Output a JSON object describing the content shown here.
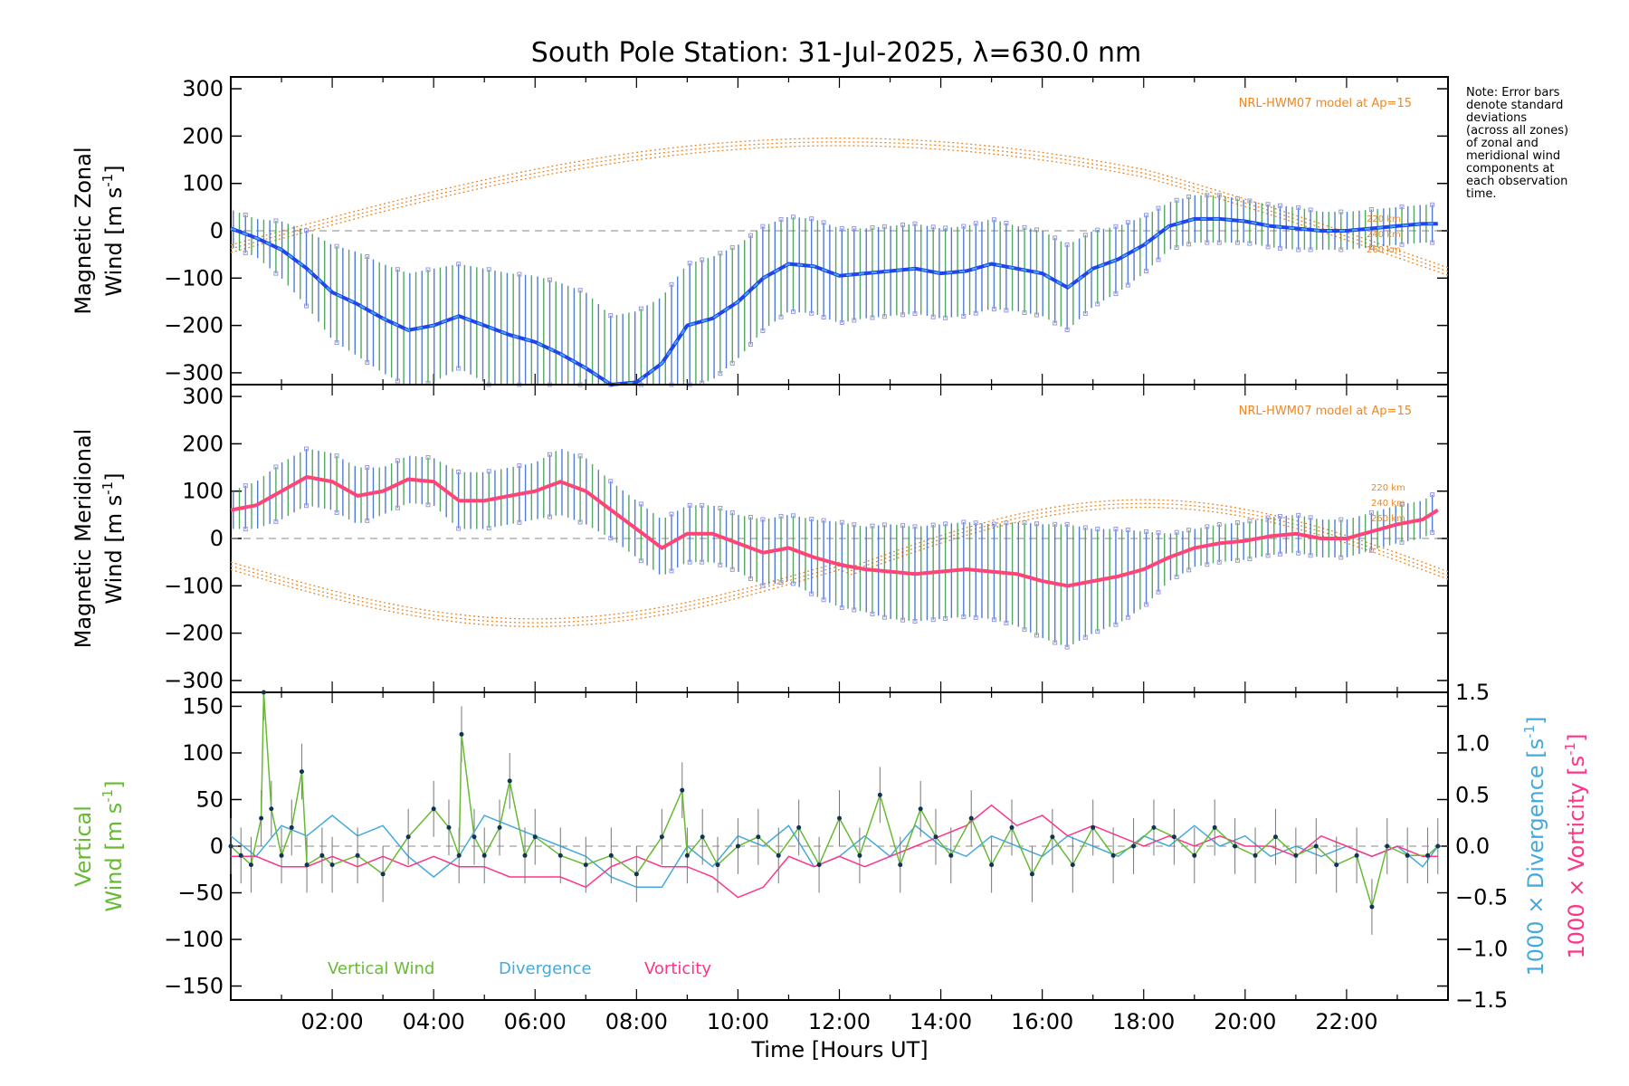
{
  "title": "South Pole Station: 31-Jul-2025, λ=630.0 nm",
  "note_lines": [
    "Note: Error bars",
    "denote standard",
    "deviations",
    "(across all zones)",
    "of zonal and",
    "meridional wind",
    "components at",
    "each observation",
    "time."
  ],
  "colors": {
    "zonal": "#2244ee",
    "zonal_alt": "#44aaee",
    "meridional": "#ff4477",
    "vertical": "#66bb33",
    "divergence": "#44aadd",
    "vorticity": "#ff3388",
    "model": "#ee8822",
    "errorbar_a": "#339944",
    "errorbar_b": "#3366cc",
    "scatter": "#9999dd"
  },
  "chart_data": [
    {
      "type": "line",
      "name": "zonal",
      "ylabel_lines": [
        "Magnetic Zonal",
        "Wind [m s",
        "-1",
        "]"
      ],
      "ylim": [
        -325,
        325
      ],
      "yticks": [
        -300,
        -200,
        -100,
        0,
        100,
        200,
        300
      ],
      "ytick_labels": [
        "−300",
        "−200",
        "−100",
        "0",
        "100",
        "200",
        "300"
      ],
      "xlim": [
        0,
        24
      ],
      "model_label": "NRL-HWM07 model at Ap=15",
      "model_levels": [
        "220 km",
        "240 km",
        "260 km"
      ],
      "series": [
        {
          "name": "Magnetic Zonal Wind",
          "x": [
            0.0,
            0.5,
            1.0,
            1.5,
            2.0,
            2.5,
            3.0,
            3.5,
            4.0,
            4.5,
            5.0,
            5.5,
            6.0,
            6.5,
            7.0,
            7.5,
            8.0,
            8.5,
            9.0,
            9.5,
            10.0,
            10.5,
            11.0,
            11.5,
            12.0,
            12.5,
            13.0,
            13.5,
            14.0,
            14.5,
            15.0,
            15.5,
            16.0,
            16.5,
            17.0,
            17.5,
            18.0,
            18.5,
            19.0,
            19.5,
            20.0,
            20.5,
            21.0,
            21.5,
            22.0,
            22.5,
            23.0,
            23.5,
            23.8
          ],
          "y": [
            5,
            -15,
            -40,
            -80,
            -130,
            -155,
            -185,
            -210,
            -200,
            -180,
            -200,
            -220,
            -235,
            -260,
            -290,
            -340,
            -320,
            -280,
            -200,
            -185,
            -150,
            -100,
            -70,
            -75,
            -95,
            -90,
            -85,
            -80,
            -90,
            -85,
            -70,
            -80,
            -90,
            -120,
            -80,
            -60,
            -30,
            10,
            25,
            25,
            20,
            10,
            5,
            0,
            0,
            5,
            10,
            15,
            15
          ],
          "err": [
            40,
            40,
            60,
            80,
            100,
            110,
            115,
            120,
            120,
            110,
            120,
            130,
            140,
            150,
            160,
            160,
            150,
            140,
            130,
            130,
            120,
            110,
            100,
            100,
            100,
            95,
            95,
            95,
            95,
            95,
            95,
            90,
            90,
            90,
            80,
            70,
            60,
            50,
            50,
            50,
            45,
            45,
            45,
            40,
            40,
            40,
            40,
            40,
            40
          ]
        }
      ]
    },
    {
      "type": "line",
      "name": "meridional",
      "ylabel_lines": [
        "Magnetic Meridional",
        "Wind [m s",
        "-1",
        "]"
      ],
      "ylim": [
        -325,
        325
      ],
      "yticks": [
        -300,
        -200,
        -100,
        0,
        100,
        200,
        300
      ],
      "ytick_labels": [
        "−300",
        "−200",
        "−100",
        "0",
        "100",
        "200",
        "300"
      ],
      "xlim": [
        0,
        24
      ],
      "model_label": "NRL-HWM07 model at Ap=15",
      "model_levels": [
        "220 km",
        "240 km",
        "260 km"
      ],
      "series": [
        {
          "name": "Magnetic Meridional Wind",
          "x": [
            0.0,
            0.5,
            1.0,
            1.5,
            2.0,
            2.5,
            3.0,
            3.5,
            4.0,
            4.5,
            5.0,
            5.5,
            6.0,
            6.5,
            7.0,
            7.5,
            8.0,
            8.5,
            9.0,
            9.5,
            10.0,
            10.5,
            11.0,
            11.5,
            12.0,
            12.5,
            13.0,
            13.5,
            14.0,
            14.5,
            15.0,
            15.5,
            16.0,
            16.5,
            17.0,
            17.5,
            18.0,
            18.5,
            19.0,
            19.5,
            20.0,
            20.5,
            21.0,
            21.5,
            22.0,
            22.5,
            23.0,
            23.5,
            23.8
          ],
          "y": [
            60,
            70,
            100,
            130,
            120,
            90,
            100,
            125,
            120,
            80,
            80,
            90,
            100,
            120,
            100,
            60,
            20,
            -20,
            10,
            10,
            -10,
            -30,
            -20,
            -40,
            -55,
            -65,
            -70,
            -75,
            -70,
            -65,
            -70,
            -75,
            -90,
            -100,
            -90,
            -80,
            -65,
            -40,
            -20,
            -10,
            -5,
            5,
            10,
            0,
            0,
            15,
            30,
            40,
            60
          ],
          "err": [
            40,
            50,
            60,
            60,
            60,
            60,
            50,
            50,
            50,
            60,
            60,
            60,
            60,
            70,
            70,
            60,
            60,
            60,
            60,
            60,
            60,
            70,
            70,
            80,
            90,
            90,
            100,
            100,
            100,
            100,
            100,
            110,
            120,
            130,
            110,
            100,
            80,
            50,
            40,
            40,
            40,
            40,
            40,
            40,
            40,
            40,
            40,
            40,
            40
          ]
        }
      ]
    },
    {
      "type": "line",
      "name": "vertical",
      "ylabel_left_lines": [
        "Vertical",
        "Wind [m s",
        "-1",
        "]"
      ],
      "ylabel_right_div": [
        "1000 × Divergence [s",
        "-1",
        "]"
      ],
      "ylabel_right_vor": [
        "1000 × Vorticity [s",
        "-1",
        "]"
      ],
      "ylim": [
        -165,
        165
      ],
      "yticks": [
        -150,
        -100,
        -50,
        0,
        50,
        100,
        150
      ],
      "ytick_labels": [
        "−150",
        "−100",
        "−50",
        "0",
        "50",
        "100",
        "150"
      ],
      "y2lim": [
        -1.5,
        1.5
      ],
      "y2ticks": [
        -1.5,
        -1.0,
        -0.5,
        0.0,
        0.5,
        1.0,
        1.5
      ],
      "y2tick_labels": [
        "−1.5",
        "−1.0",
        "−0.5",
        "0.0",
        "0.5",
        "1.0",
        "1.5"
      ],
      "xlim": [
        0,
        24
      ],
      "xticks": [
        2,
        4,
        6,
        8,
        10,
        12,
        14,
        16,
        18,
        20,
        22
      ],
      "xtick_labels": [
        "02:00",
        "04:00",
        "06:00",
        "08:00",
        "10:00",
        "12:00",
        "14:00",
        "16:00",
        "18:00",
        "20:00",
        "22:00"
      ],
      "xlabel": "Time [Hours UT]",
      "legend": [
        "Vertical Wind",
        "Divergence",
        "Vorticity"
      ],
      "series": [
        {
          "name": "Vertical Wind",
          "x": [
            0.0,
            0.2,
            0.4,
            0.6,
            0.65,
            0.8,
            1.0,
            1.2,
            1.4,
            1.5,
            1.8,
            2.0,
            2.5,
            3.0,
            3.5,
            4.0,
            4.3,
            4.5,
            4.55,
            4.8,
            5.0,
            5.3,
            5.5,
            5.8,
            6.0,
            6.5,
            7.0,
            7.5,
            8.0,
            8.5,
            8.9,
            9.0,
            9.3,
            9.6,
            10.0,
            10.4,
            10.8,
            11.2,
            11.6,
            12.0,
            12.4,
            12.8,
            13.2,
            13.6,
            13.9,
            14.2,
            14.6,
            15.0,
            15.4,
            15.8,
            16.2,
            16.6,
            17.0,
            17.4,
            17.8,
            18.2,
            18.6,
            19.0,
            19.4,
            19.8,
            20.2,
            20.6,
            21.0,
            21.4,
            21.8,
            22.2,
            22.5,
            22.8,
            23.2,
            23.6,
            23.8
          ],
          "y": [
            0,
            -10,
            -20,
            30,
            165,
            40,
            -10,
            20,
            80,
            -20,
            -10,
            -20,
            -10,
            -30,
            10,
            40,
            20,
            -10,
            120,
            10,
            -10,
            20,
            70,
            -10,
            10,
            -10,
            -20,
            -10,
            -30,
            10,
            60,
            -10,
            10,
            -20,
            0,
            10,
            -10,
            20,
            -20,
            30,
            -10,
            55,
            -20,
            40,
            10,
            -10,
            30,
            -20,
            20,
            -30,
            10,
            -20,
            20,
            -10,
            0,
            20,
            10,
            -10,
            20,
            0,
            -10,
            10,
            -10,
            0,
            -20,
            -10,
            -65,
            0,
            -10,
            -10,
            0
          ]
        },
        {
          "name": "Divergence",
          "x": [
            0.0,
            0.5,
            1.0,
            1.5,
            2.0,
            2.5,
            3.0,
            3.5,
            4.0,
            4.5,
            5.0,
            5.5,
            6.0,
            6.5,
            7.0,
            7.5,
            8.0,
            8.5,
            9.0,
            9.5,
            10.0,
            10.5,
            11.0,
            11.5,
            12.0,
            12.5,
            13.0,
            13.5,
            14.0,
            14.5,
            15.0,
            15.5,
            16.0,
            16.5,
            17.0,
            17.5,
            18.0,
            18.5,
            19.0,
            19.5,
            20.0,
            20.5,
            21.0,
            21.5,
            22.0,
            22.5,
            23.0,
            23.5,
            23.8
          ],
          "y": [
            0.1,
            -0.1,
            0.2,
            0.1,
            0.3,
            0.1,
            0.2,
            -0.1,
            -0.3,
            -0.1,
            0.3,
            0.2,
            0.1,
            0.0,
            -0.1,
            -0.3,
            -0.4,
            -0.4,
            0.0,
            -0.2,
            0.1,
            0.0,
            0.2,
            -0.2,
            -0.1,
            0.1,
            -0.1,
            0.2,
            0.0,
            -0.1,
            0.1,
            0.0,
            -0.1,
            0.1,
            0.0,
            -0.1,
            0.1,
            0.0,
            0.2,
            0.0,
            0.1,
            -0.1,
            0.0,
            -0.1,
            0.0,
            -0.1,
            0.0,
            -0.2,
            0.0
          ]
        },
        {
          "name": "Vorticity",
          "x": [
            0.0,
            0.5,
            1.0,
            1.5,
            2.0,
            2.5,
            3.0,
            3.5,
            4.0,
            4.5,
            5.0,
            5.5,
            6.0,
            6.5,
            7.0,
            7.5,
            8.0,
            8.5,
            9.0,
            9.5,
            10.0,
            10.5,
            11.0,
            11.5,
            12.0,
            12.5,
            13.0,
            13.5,
            14.0,
            14.5,
            15.0,
            15.5,
            16.0,
            16.5,
            17.0,
            17.5,
            18.0,
            18.5,
            19.0,
            19.5,
            20.0,
            20.5,
            21.0,
            21.5,
            22.0,
            22.5,
            23.0,
            23.5,
            23.8
          ],
          "y": [
            -0.1,
            -0.1,
            -0.2,
            -0.2,
            -0.1,
            -0.2,
            -0.1,
            -0.2,
            -0.1,
            -0.2,
            -0.2,
            -0.3,
            -0.3,
            -0.3,
            -0.4,
            -0.2,
            -0.1,
            -0.2,
            -0.2,
            -0.3,
            -0.5,
            -0.4,
            -0.1,
            -0.2,
            -0.1,
            -0.2,
            -0.1,
            0.0,
            0.1,
            0.2,
            0.4,
            0.2,
            0.3,
            0.1,
            0.2,
            0.1,
            0.0,
            0.1,
            0.0,
            0.1,
            0.0,
            0.0,
            -0.1,
            0.1,
            0.0,
            -0.1,
            0.0,
            -0.1,
            -0.1
          ]
        }
      ]
    }
  ]
}
